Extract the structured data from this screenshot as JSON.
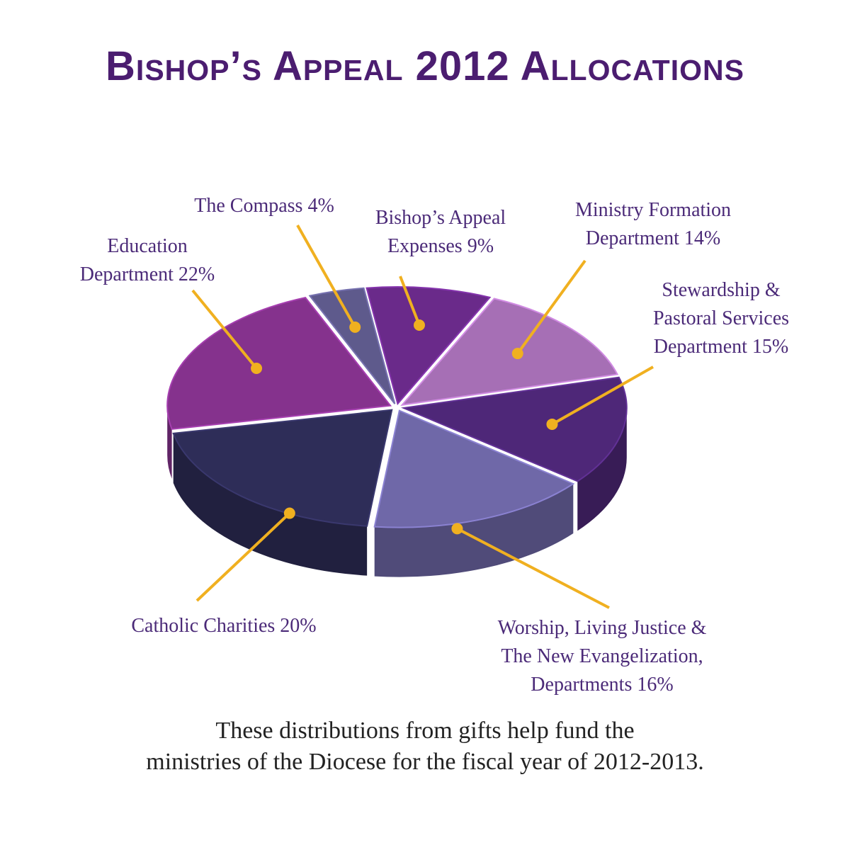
{
  "title": "Bishop’s Appeal 2012 Allocations",
  "caption": {
    "line1": "These distributions from gifts help fund the",
    "line2": "ministries of the Diocese for the fiscal year of 2012-2013."
  },
  "colors": {
    "title": "#4b1d70",
    "label": "#4b2a78",
    "leader": "#f0b020"
  },
  "chart_data": {
    "type": "pie",
    "title": "Bishop’s Appeal 2012 Allocations",
    "unit": "%",
    "slices": [
      {
        "label_lines": [
          "Bishop’s Appeal",
          "Expenses 9%"
        ],
        "category": "Bishop’s Appeal Expenses",
        "value": 9,
        "color": "#6a2a8a"
      },
      {
        "label_lines": [
          "Ministry Formation",
          "Department 14%"
        ],
        "category": "Ministry Formation Department",
        "value": 14,
        "color": "#a66fb5"
      },
      {
        "label_lines": [
          "Stewardship &",
          "Pastoral Services",
          "Department 15%"
        ],
        "category": "Stewardship & Pastoral Services Department",
        "value": 15,
        "color": "#4e2778"
      },
      {
        "label_lines": [
          "Worship, Living Justice &",
          "The New Evangelization,",
          "Departments 16%"
        ],
        "category": "Worship, Living Justice & The New Evangelization, Departments",
        "value": 16,
        "color": "#6f68a8"
      },
      {
        "label_lines": [
          "Catholic Charities 20%"
        ],
        "category": "Catholic Charities",
        "value": 20,
        "color": "#2e2d58"
      },
      {
        "label_lines": [
          "Education",
          "Department 22%"
        ],
        "category": "Education Department",
        "value": 22,
        "color": "#85328d"
      },
      {
        "label_lines": [
          "The Compass 4%"
        ],
        "category": "The Compass",
        "value": 4,
        "color": "#5e5a8c"
      }
    ]
  }
}
